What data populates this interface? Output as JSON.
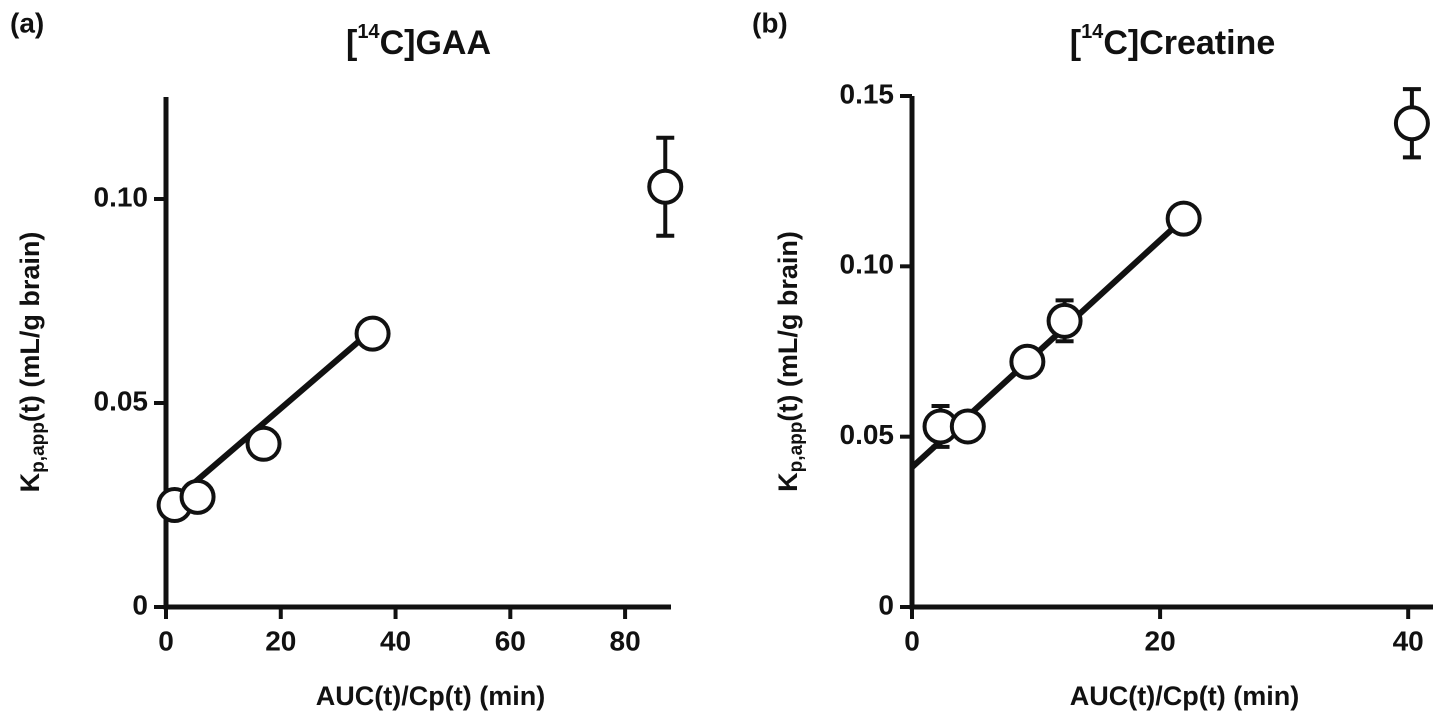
{
  "chart_data": [
    {
      "type": "scatter",
      "panel_label": "(a)",
      "title": [
        "[",
        "14",
        "C]GAA"
      ],
      "xlabel": "AUC(t)/Cp(t) (min)",
      "ylabel": [
        "K",
        "p,app",
        "(t)  (mL/g brain)"
      ],
      "x": [
        1.5,
        5.5,
        17,
        36,
        87
      ],
      "values": [
        0.025,
        0.027,
        0.04,
        0.067,
        0.103
      ],
      "errors": [
        0.002,
        0.002,
        0.002,
        0.002,
        0.012
      ],
      "fit": {
        "x": [
          0,
          36
        ],
        "values": [
          0.0245,
          0.068
        ]
      },
      "xlim": [
        0,
        88
      ],
      "xticks": [
        0,
        20,
        40,
        60,
        80
      ],
      "ylim": [
        0,
        0.125
      ],
      "yticks": [
        0,
        0.05,
        {
          "value": 0.1,
          "label": "0.10"
        }
      ]
    },
    {
      "type": "scatter",
      "panel_label": "(b)",
      "title": [
        "[",
        "14",
        "C]Creatine"
      ],
      "xlabel": "AUC(t)/Cp(t) (min)",
      "ylabel": [
        "K",
        "p,app",
        "(t)  (mL/g brain)"
      ],
      "x": [
        2.3,
        4.5,
        9.3,
        12.3,
        21.9,
        40.3
      ],
      "values": [
        0.053,
        0.053,
        0.072,
        0.084,
        0.114,
        0.142
      ],
      "errors": [
        0.006,
        0.002,
        0.002,
        0.006,
        0.002,
        0.01
      ],
      "fit": {
        "x": [
          0,
          21.9
        ],
        "values": [
          0.041,
          0.114
        ]
      },
      "xlim": [
        0,
        42
      ],
      "xticks": [
        0,
        20,
        40
      ],
      "ylim": [
        0,
        0.15
      ],
      "yticks": [
        0,
        0.05,
        {
          "value": 0.1,
          "label": "0.10"
        },
        0.15
      ]
    }
  ]
}
